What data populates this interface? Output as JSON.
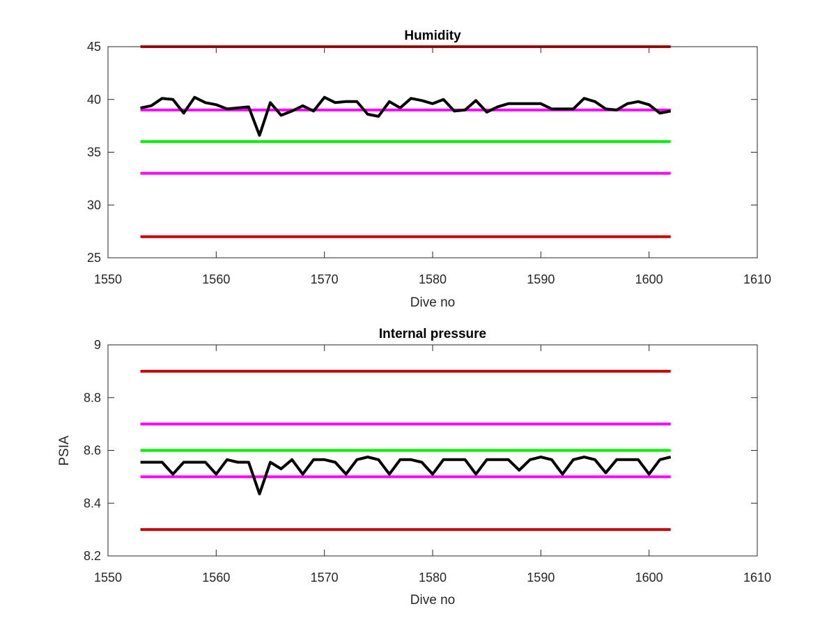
{
  "chart_data": [
    {
      "type": "line",
      "title": "Humidity",
      "xlabel": "Dive no",
      "ylabel": "",
      "xlim": [
        1550,
        1610
      ],
      "ylim": [
        25,
        45
      ],
      "xticks": [
        1550,
        1560,
        1570,
        1580,
        1590,
        1600,
        1610
      ],
      "yticks": [
        25,
        30,
        35,
        40,
        45
      ],
      "grid": false,
      "series": [
        {
          "color": "#cc0000",
          "points": [
            [
              1553,
              45
            ],
            [
              1602,
              45
            ]
          ]
        },
        {
          "color": "#cc0000",
          "points": [
            [
              1553,
              27
            ],
            [
              1602,
              27
            ]
          ]
        },
        {
          "color": "#ff00ff",
          "points": [
            [
              1553,
              39
            ],
            [
              1602,
              39
            ]
          ]
        },
        {
          "color": "#ff00ff",
          "points": [
            [
              1553,
              33
            ],
            [
              1602,
              33
            ]
          ]
        },
        {
          "color": "#00ee00",
          "points": [
            [
              1553,
              36
            ],
            [
              1602,
              36
            ]
          ]
        },
        {
          "color": "#000000",
          "points": [
            [
              1553,
              39.2
            ],
            [
              1554,
              39.4
            ],
            [
              1555,
              40.1
            ],
            [
              1556,
              40.0
            ],
            [
              1557,
              38.7
            ],
            [
              1558,
              40.2
            ],
            [
              1559,
              39.7
            ],
            [
              1560,
              39.5
            ],
            [
              1561,
              39.1
            ],
            [
              1562,
              39.2
            ],
            [
              1563,
              39.3
            ],
            [
              1564,
              36.6
            ],
            [
              1565,
              39.7
            ],
            [
              1566,
              38.5
            ],
            [
              1567,
              38.9
            ],
            [
              1568,
              39.4
            ],
            [
              1569,
              38.9
            ],
            [
              1570,
              40.2
            ],
            [
              1571,
              39.7
            ],
            [
              1572,
              39.8
            ],
            [
              1573,
              39.8
            ],
            [
              1574,
              38.6
            ],
            [
              1575,
              38.4
            ],
            [
              1576,
              39.8
            ],
            [
              1577,
              39.2
            ],
            [
              1578,
              40.1
            ],
            [
              1579,
              39.9
            ],
            [
              1580,
              39.6
            ],
            [
              1581,
              40.0
            ],
            [
              1582,
              38.9
            ],
            [
              1583,
              39.0
            ],
            [
              1584,
              39.9
            ],
            [
              1585,
              38.8
            ],
            [
              1586,
              39.3
            ],
            [
              1587,
              39.6
            ],
            [
              1588,
              39.6
            ],
            [
              1589,
              39.6
            ],
            [
              1590,
              39.6
            ],
            [
              1591,
              39.1
            ],
            [
              1592,
              39.1
            ],
            [
              1593,
              39.1
            ],
            [
              1594,
              40.1
            ],
            [
              1595,
              39.8
            ],
            [
              1596,
              39.1
            ],
            [
              1597,
              39.0
            ],
            [
              1598,
              39.6
            ],
            [
              1599,
              39.8
            ],
            [
              1600,
              39.5
            ],
            [
              1601,
              38.7
            ],
            [
              1602,
              38.9
            ]
          ]
        }
      ]
    },
    {
      "type": "line",
      "title": "Internal pressure",
      "xlabel": "Dive no",
      "ylabel": "PSIA",
      "xlim": [
        1550,
        1610
      ],
      "ylim": [
        8.2,
        9
      ],
      "xticks": [
        1550,
        1560,
        1570,
        1580,
        1590,
        1600,
        1610
      ],
      "yticks": [
        8.2,
        8.4,
        8.6,
        8.8,
        9
      ],
      "grid": false,
      "series": [
        {
          "color": "#cc0000",
          "points": [
            [
              1553,
              8.9
            ],
            [
              1602,
              8.9
            ]
          ]
        },
        {
          "color": "#cc0000",
          "points": [
            [
              1553,
              8.3
            ],
            [
              1602,
              8.3
            ]
          ]
        },
        {
          "color": "#ff00ff",
          "points": [
            [
              1553,
              8.7
            ],
            [
              1602,
              8.7
            ]
          ]
        },
        {
          "color": "#ff00ff",
          "points": [
            [
              1553,
              8.5
            ],
            [
              1602,
              8.5
            ]
          ]
        },
        {
          "color": "#00ee00",
          "points": [
            [
              1553,
              8.6
            ],
            [
              1602,
              8.6
            ]
          ]
        },
        {
          "color": "#000000",
          "points": [
            [
              1553,
              8.555
            ],
            [
              1554,
              8.555
            ],
            [
              1555,
              8.555
            ],
            [
              1556,
              8.51
            ],
            [
              1557,
              8.555
            ],
            [
              1558,
              8.555
            ],
            [
              1559,
              8.555
            ],
            [
              1560,
              8.51
            ],
            [
              1561,
              8.565
            ],
            [
              1562,
              8.555
            ],
            [
              1563,
              8.555
            ],
            [
              1564,
              8.435
            ],
            [
              1565,
              8.555
            ],
            [
              1566,
              8.53
            ],
            [
              1567,
              8.565
            ],
            [
              1568,
              8.51
            ],
            [
              1569,
              8.565
            ],
            [
              1570,
              8.565
            ],
            [
              1571,
              8.555
            ],
            [
              1572,
              8.51
            ],
            [
              1573,
              8.565
            ],
            [
              1574,
              8.575
            ],
            [
              1575,
              8.565
            ],
            [
              1576,
              8.51
            ],
            [
              1577,
              8.565
            ],
            [
              1578,
              8.565
            ],
            [
              1579,
              8.555
            ],
            [
              1580,
              8.51
            ],
            [
              1581,
              8.565
            ],
            [
              1582,
              8.565
            ],
            [
              1583,
              8.565
            ],
            [
              1584,
              8.51
            ],
            [
              1585,
              8.565
            ],
            [
              1586,
              8.565
            ],
            [
              1587,
              8.565
            ],
            [
              1588,
              8.525
            ],
            [
              1589,
              8.565
            ],
            [
              1590,
              8.575
            ],
            [
              1591,
              8.565
            ],
            [
              1592,
              8.51
            ],
            [
              1593,
              8.565
            ],
            [
              1594,
              8.575
            ],
            [
              1595,
              8.565
            ],
            [
              1596,
              8.515
            ],
            [
              1597,
              8.565
            ],
            [
              1598,
              8.565
            ],
            [
              1599,
              8.565
            ],
            [
              1600,
              8.51
            ],
            [
              1601,
              8.565
            ],
            [
              1602,
              8.575
            ]
          ]
        }
      ]
    }
  ]
}
